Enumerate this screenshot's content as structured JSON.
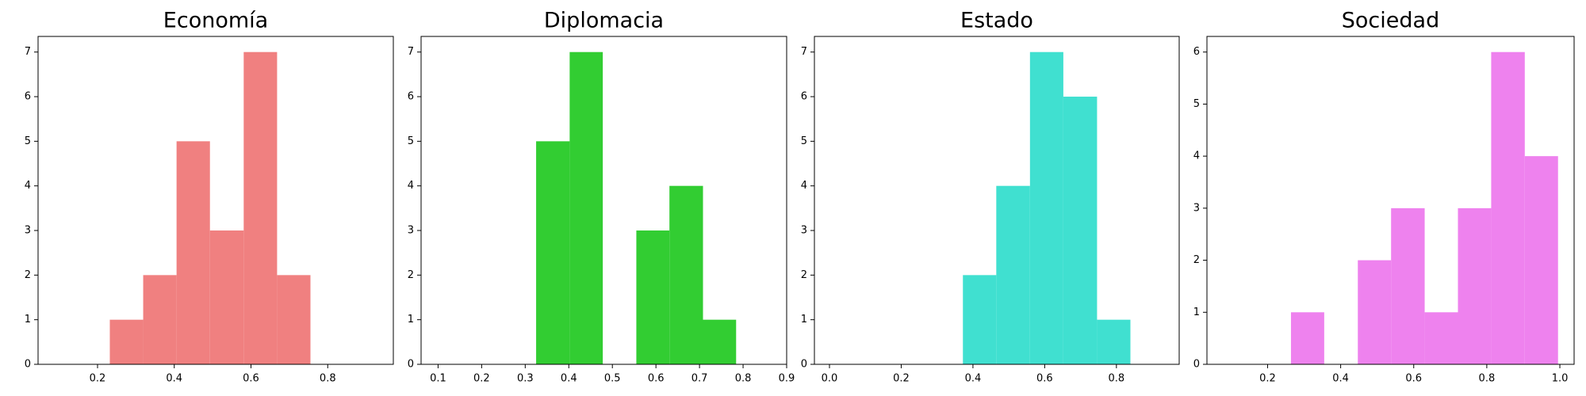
{
  "chart_data": [
    {
      "type": "histogram",
      "title": "Economía",
      "color": "#f08080",
      "bins": [
        0.232,
        0.319,
        0.406,
        0.493,
        0.581,
        0.668,
        0.755
      ],
      "counts": [
        1,
        2,
        5,
        3,
        7,
        2
      ],
      "xlim": [
        0.045,
        0.971
      ],
      "ylim": [
        0,
        7.35
      ],
      "xticks": [
        0.2,
        0.4,
        0.6,
        0.8
      ],
      "yticks": [
        0,
        1,
        2,
        3,
        4,
        5,
        6,
        7
      ]
    },
    {
      "type": "histogram",
      "title": "Diplomacia",
      "color": "#32cd32",
      "bins": [
        0.325,
        0.402,
        0.478,
        0.555,
        0.631,
        0.708,
        0.784
      ],
      "counts": [
        5,
        7,
        0,
        3,
        4,
        1
      ],
      "xlim": [
        0.061,
        0.9
      ],
      "ylim": [
        0,
        7.35
      ],
      "xticks": [
        0.1,
        0.2,
        0.3,
        0.4,
        0.5,
        0.6,
        0.7,
        0.8,
        0.9
      ],
      "yticks": [
        0,
        1,
        2,
        3,
        4,
        5,
        6,
        7
      ]
    },
    {
      "type": "histogram",
      "title": "Estado",
      "color": "#40e0d0",
      "bins": [
        0.372,
        0.465,
        0.559,
        0.652,
        0.746,
        0.839
      ],
      "counts": [
        2,
        4,
        7,
        6,
        1
      ],
      "xlim": [
        -0.042,
        0.975
      ],
      "ylim": [
        0,
        7.35
      ],
      "xticks": [
        {
          "value": 0,
          "label": "0.0"
        },
        0.2,
        0.4,
        0.6,
        0.8
      ],
      "yticks": [
        0,
        1,
        2,
        3,
        4,
        5,
        6,
        7
      ]
    },
    {
      "type": "histogram",
      "title": "Sociedad",
      "color": "#ee82ee",
      "bins": [
        0.264,
        0.355,
        0.447,
        0.538,
        0.63,
        0.721,
        0.812,
        0.904,
        0.995
      ],
      "counts": [
        1,
        0,
        2,
        3,
        1,
        3,
        6,
        4
      ],
      "xlim": [
        0.034,
        1.039
      ],
      "ylim": [
        0,
        6.3
      ],
      "xticks": [
        0.2,
        0.4,
        0.6,
        0.8,
        {
          "value": 1,
          "label": "1.0"
        }
      ],
      "yticks": [
        0,
        1,
        2,
        3,
        4,
        5,
        6
      ]
    }
  ]
}
